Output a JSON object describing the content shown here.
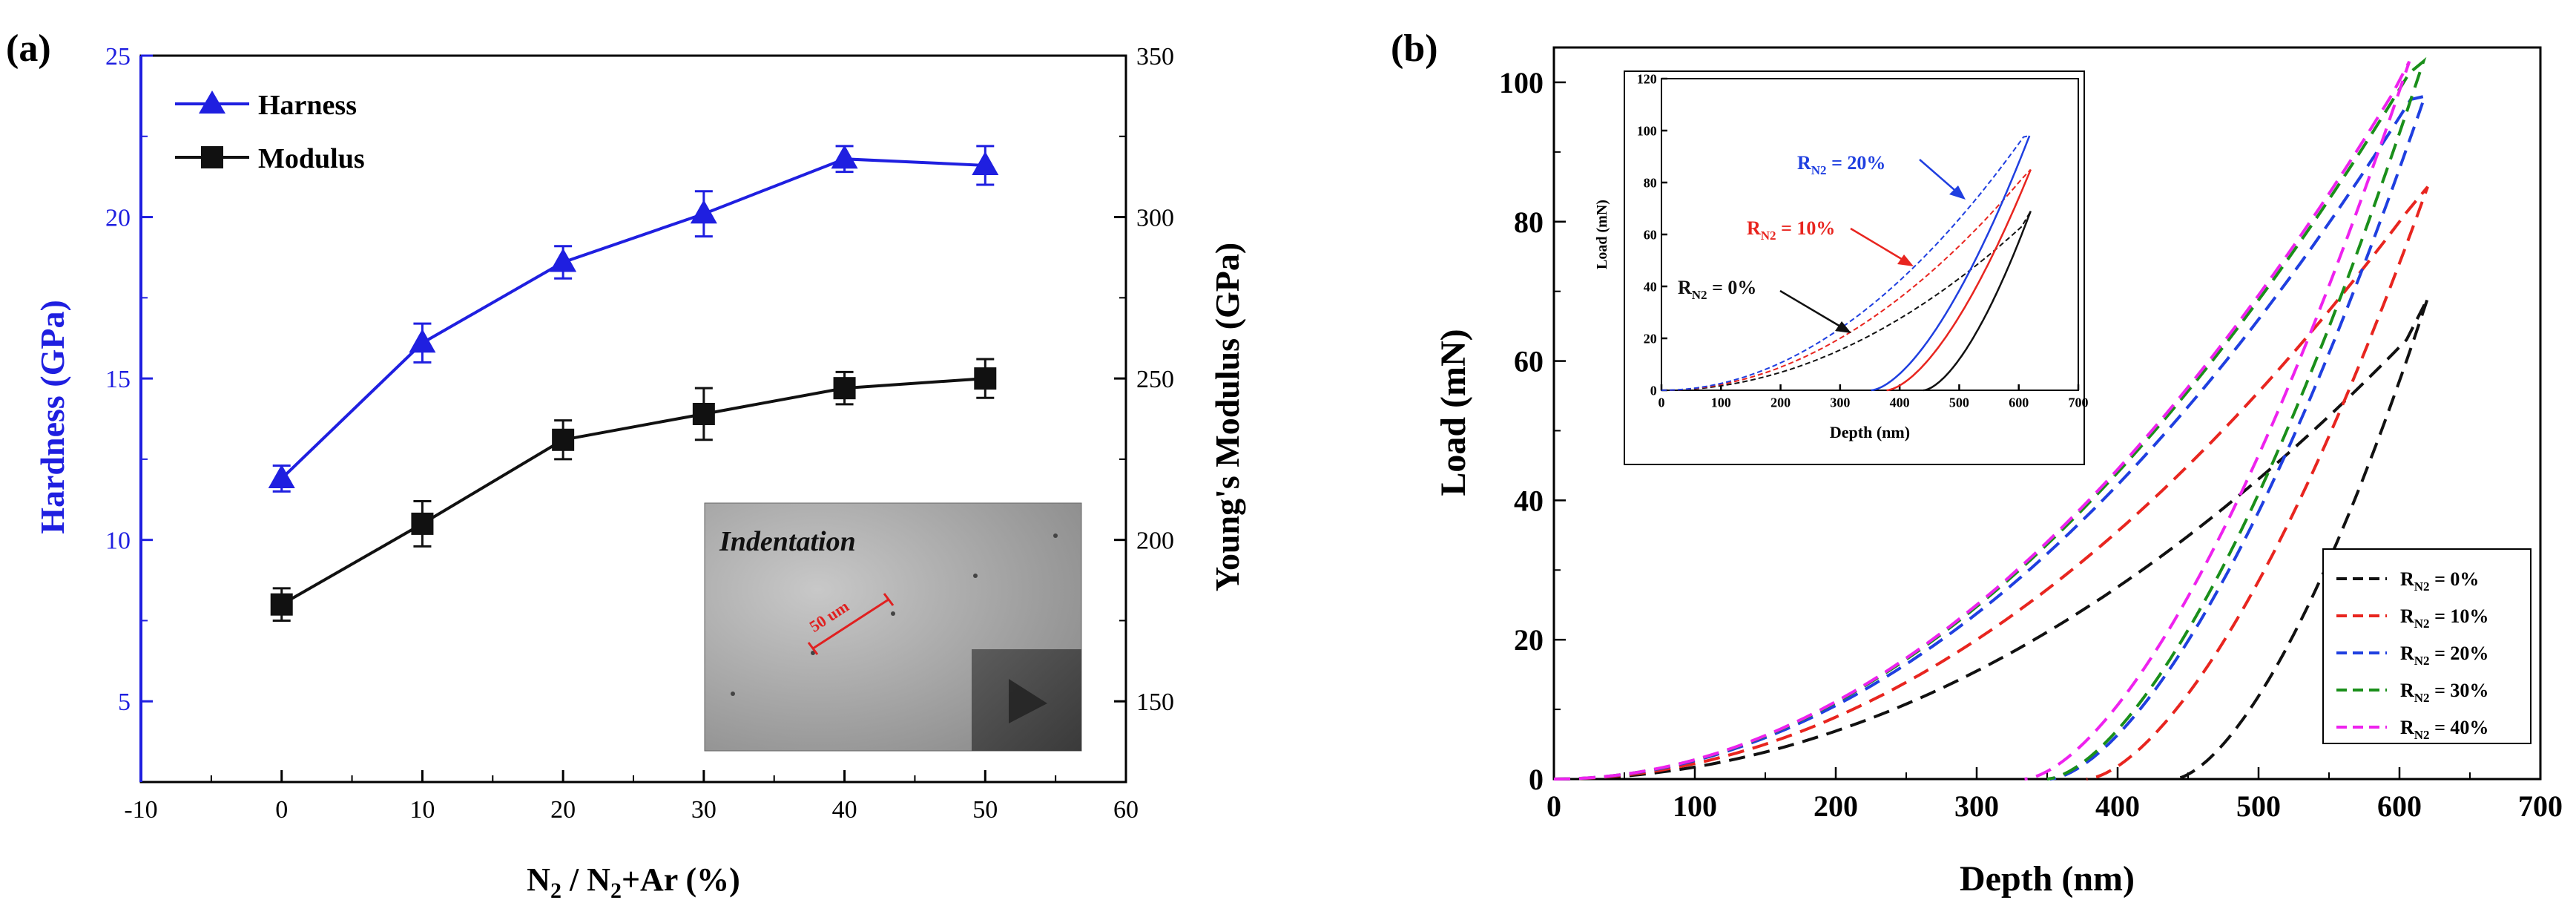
{
  "chart_data": [
    {
      "type": "line",
      "panel_label": "(a)",
      "xlabel": "N2 / N2+Ar (%)",
      "xlabel_parts": {
        "n": "N",
        "sub": "2",
        "mid": " / N",
        "rest": "+Ar (%)"
      },
      "ylabel_left": "Hardness (GPa)",
      "ylabel_right": "Young's Modulus (GPa)",
      "xlim": [
        -10,
        60
      ],
      "ylim_left": [
        2.5,
        25
      ],
      "ylim_right": [
        125,
        350
      ],
      "x_ticks": [
        -10,
        0,
        10,
        20,
        30,
        40,
        50,
        60
      ],
      "y_ticks_left": [
        5,
        10,
        15,
        20,
        25
      ],
      "y_ticks_right": [
        150,
        200,
        250,
        300,
        350
      ],
      "series": [
        {
          "name": "Harness",
          "axis": "left",
          "color": "#1f1fe0",
          "marker": "triangle",
          "x": [
            0,
            10,
            20,
            30,
            40,
            50
          ],
          "values": [
            11.9,
            16.1,
            18.6,
            20.1,
            21.8,
            21.6
          ],
          "err": [
            0.4,
            0.6,
            0.5,
            0.7,
            0.4,
            0.6
          ]
        },
        {
          "name": "Modulus",
          "axis": "right",
          "color": "#111111",
          "marker": "square",
          "x": [
            0,
            10,
            20,
            30,
            40,
            50
          ],
          "values": [
            180,
            205,
            231,
            239,
            247,
            250
          ],
          "err": [
            5,
            7,
            6,
            8,
            5,
            6
          ]
        }
      ],
      "inset": {
        "title": "Indentation",
        "scale_label": "50 um"
      }
    },
    {
      "type": "line",
      "panel_label": "(b)",
      "xlabel": "Depth (nm)",
      "ylabel": "Load (mN)",
      "xlim": [
        0,
        700
      ],
      "ylim": [
        0,
        105
      ],
      "x_ticks": [
        0,
        100,
        200,
        300,
        400,
        500,
        600,
        700
      ],
      "y_ticks": [
        0,
        20,
        40,
        60,
        80,
        100
      ],
      "legend_position": "bottom-right",
      "series": [
        {
          "name": "RN2 = 0%",
          "base": "R",
          "sub": "N2",
          "suffix": " = 0%",
          "color": "#111111",
          "load_max": 69,
          "d_max": 620,
          "k_load": 62,
          "unload_end": 440,
          "plateau_start": 605
        },
        {
          "name": "RN2 = 10%",
          "base": "R",
          "sub": "N2",
          "suffix": " = 10%",
          "color": "#e8251f",
          "load_max": 85,
          "d_max": 620,
          "k_load": 80,
          "unload_end": 378,
          "plateau_start": 605
        },
        {
          "name": "RN2 = 20%",
          "base": "R",
          "sub": "N2",
          "suffix": " = 20%",
          "color": "#1f3fe0",
          "load_max": 98,
          "d_max": 618,
          "k_load": 95,
          "unload_end": 352,
          "plateau_start": 608
        },
        {
          "name": "RN2 = 30%",
          "base": "R",
          "sub": "N2",
          "suffix": " = 30%",
          "color": "#1a8f1a",
          "load_max": 103,
          "d_max": 617,
          "k_load": 99,
          "unload_end": 350,
          "plateau_start": 607
        },
        {
          "name": "RN2 = 40%",
          "base": "R",
          "sub": "N2",
          "suffix": " = 40%",
          "color": "#ee22ee",
          "load_max": 103,
          "d_max": 607,
          "k_load": 100,
          "unload_end": 334,
          "plateau_start": 595
        }
      ],
      "inset": {
        "xlabel": "Depth (nm)",
        "ylabel": "Load (mN)",
        "xlim": [
          0,
          700
        ],
        "ylim": [
          0,
          120
        ],
        "x_ticks": [
          0,
          100,
          200,
          300,
          400,
          500,
          600,
          700
        ],
        "y_ticks": [
          0,
          20,
          40,
          60,
          80,
          100,
          120
        ],
        "series": [
          {
            "ref": 0,
            "color": "#111111",
            "annotation": {
              "base": "R",
              "sub": "N2",
              "suffix": " = 0%"
            }
          },
          {
            "ref": 1,
            "color": "#e8251f",
            "annotation": {
              "base": "R",
              "sub": "N2",
              "suffix": " = 10%"
            }
          },
          {
            "ref": 2,
            "color": "#1f3fe0",
            "annotation": {
              "base": "R",
              "sub": "N2",
              "suffix": " = 20%"
            }
          }
        ]
      }
    }
  ]
}
